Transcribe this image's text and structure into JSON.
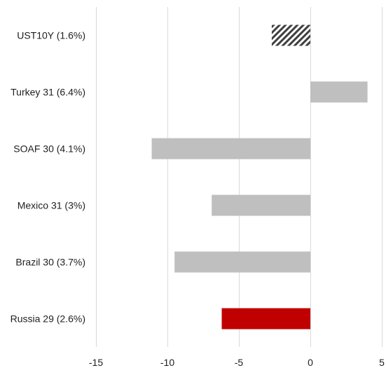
{
  "chart_data": {
    "type": "bar",
    "orientation": "horizontal",
    "categories": [
      "UST10Y (1.6%)",
      "Turkey 31 (6.4%)",
      "SOAF 30 (4.1%)",
      "Mexico 31 (3%)",
      "Brazil 30 (3.7%)",
      "Russia 29 (2.6%)"
    ],
    "values": [
      -2.7,
      4.0,
      -11.1,
      -6.9,
      -9.5,
      -6.2
    ],
    "bar_styles": [
      "hatched",
      "solid",
      "solid",
      "solid",
      "solid",
      "highlight"
    ],
    "colors": {
      "default": "#bfbfbf",
      "highlight": "#c00000",
      "hatch": "#404040",
      "grid": "#d9d9d9"
    },
    "x_ticks": [
      -15,
      -10,
      -5,
      0,
      5
    ],
    "x_tick_labels": [
      "-15",
      "-10",
      "-5",
      "0",
      "5"
    ],
    "xlim": [
      -15,
      5
    ],
    "grid": "vertical",
    "legend": "none",
    "title": "",
    "xlabel": "",
    "ylabel": ""
  }
}
